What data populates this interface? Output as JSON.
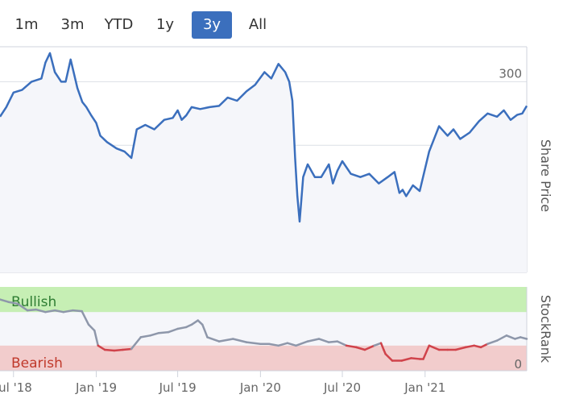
{
  "range_selector": {
    "buttons": [
      {
        "label": "1m",
        "active": false
      },
      {
        "label": "3m",
        "active": false
      },
      {
        "label": "YTD",
        "active": false
      },
      {
        "label": "1y",
        "active": false
      },
      {
        "label": "3y",
        "active": true
      },
      {
        "label": "All",
        "active": false
      }
    ]
  },
  "colors": {
    "price_line": "#3b6fbd",
    "plot_bg": "#f5f6fa",
    "bullish_band": "#c6efb4",
    "bearish_band": "#f2cccc",
    "rank_neutral": "#8e97aa",
    "rank_bearish": "#d0434b",
    "bullish_text": "#2e7d32",
    "bearish_text": "#c0392b",
    "active_button": "#3b6fbd"
  },
  "chart_data": [
    {
      "type": "line",
      "title": "",
      "ylabel": "Share Price",
      "ylim": [
        0,
        355
      ],
      "yticks": [
        0,
        100,
        200,
        300
      ],
      "x_ticks": [
        "Jul '18",
        "Jan '19",
        "Jul '19",
        "Jan '20",
        "Jul '20",
        "Jan '21"
      ],
      "x_start": "2018-06-01",
      "x_end": "2021-08-15",
      "grid": true,
      "series": [
        {
          "x": [
            "2018-06-01",
            "2018-06-15",
            "2018-07-01",
            "2018-07-20",
            "2018-08-10",
            "2018-09-01",
            "2018-09-10",
            "2018-09-20",
            "2018-10-01",
            "2018-10-15",
            "2018-10-25",
            "2018-11-05",
            "2018-11-20",
            "2018-12-01",
            "2018-12-10",
            "2018-12-20",
            "2019-01-01",
            "2019-01-10",
            "2019-01-25",
            "2019-02-15",
            "2019-03-05",
            "2019-03-20",
            "2019-04-01",
            "2019-04-20",
            "2019-05-10",
            "2019-06-01",
            "2019-06-20",
            "2019-07-01",
            "2019-07-10",
            "2019-07-20",
            "2019-08-01",
            "2019-08-20",
            "2019-09-10",
            "2019-10-01",
            "2019-10-20",
            "2019-11-10",
            "2019-12-01",
            "2019-12-20",
            "2020-01-10",
            "2020-01-25",
            "2020-02-10",
            "2020-02-25",
            "2020-03-05",
            "2020-03-12",
            "2020-03-18",
            "2020-03-23",
            "2020-03-28",
            "2020-04-05",
            "2020-04-15",
            "2020-05-01",
            "2020-05-15",
            "2020-06-01",
            "2020-06-10",
            "2020-06-20",
            "2020-07-01",
            "2020-07-20",
            "2020-08-10",
            "2020-08-30",
            "2020-09-20",
            "2020-10-10",
            "2020-10-25",
            "2020-11-05",
            "2020-11-12",
            "2020-11-20",
            "2020-12-05",
            "2020-12-20",
            "2021-01-10",
            "2021-02-01",
            "2021-02-20",
            "2021-03-05",
            "2021-03-20",
            "2021-04-10",
            "2021-05-01",
            "2021-05-20",
            "2021-06-10",
            "2021-06-25",
            "2021-07-10",
            "2021-07-25",
            "2021-08-05",
            "2021-08-15"
          ],
          "y": [
            245,
            260,
            283,
            287,
            300,
            305,
            330,
            345,
            315,
            300,
            300,
            335,
            290,
            268,
            260,
            248,
            235,
            215,
            205,
            195,
            190,
            180,
            225,
            232,
            225,
            240,
            243,
            255,
            240,
            247,
            260,
            257,
            260,
            262,
            275,
            270,
            285,
            295,
            315,
            305,
            328,
            315,
            300,
            270,
            180,
            120,
            80,
            150,
            170,
            150,
            150,
            170,
            140,
            160,
            175,
            155,
            150,
            155,
            140,
            150,
            158,
            125,
            130,
            120,
            137,
            128,
            190,
            230,
            215,
            225,
            210,
            220,
            238,
            250,
            245,
            255,
            240,
            248,
            250,
            262
          ]
        }
      ]
    },
    {
      "type": "area",
      "title": "",
      "ylabel": "StockRank",
      "ylim": [
        0,
        100
      ],
      "yticks": [
        0
      ],
      "bands": [
        {
          "label": "Bullish",
          "from": 70,
          "to": 100
        },
        {
          "label": "Bearish",
          "from": 0,
          "to": 30
        }
      ],
      "series": [
        {
          "x": [
            "2018-06-01",
            "2018-06-20",
            "2018-07-10",
            "2018-08-01",
            "2018-08-20",
            "2018-09-10",
            "2018-10-01",
            "2018-10-20",
            "2018-11-10",
            "2018-11-30",
            "2018-12-15",
            "2018-12-28",
            "2019-01-05",
            "2019-01-20",
            "2019-02-10",
            "2019-03-01",
            "2019-03-20",
            "2019-04-10",
            "2019-05-01",
            "2019-05-20",
            "2019-06-10",
            "2019-07-01",
            "2019-07-20",
            "2019-08-01",
            "2019-08-15",
            "2019-08-25",
            "2019-09-05",
            "2019-10-01",
            "2019-11-01",
            "2019-12-01",
            "2020-01-01",
            "2020-01-20",
            "2020-02-10",
            "2020-03-01",
            "2020-03-20",
            "2020-04-15",
            "2020-05-10",
            "2020-06-01",
            "2020-06-20",
            "2020-07-10",
            "2020-08-01",
            "2020-08-20",
            "2020-09-10",
            "2020-09-25",
            "2020-10-01",
            "2020-10-05",
            "2020-10-20",
            "2020-11-10",
            "2020-12-01",
            "2020-12-20",
            "2020-12-28",
            "2021-01-10",
            "2021-02-01",
            "2021-02-20",
            "2021-03-10",
            "2021-04-01",
            "2021-04-20",
            "2021-05-05",
            "2021-05-20",
            "2021-06-10",
            "2021-07-01",
            "2021-07-20",
            "2021-08-01",
            "2021-08-15"
          ],
          "y": [
            85,
            82,
            80,
            72,
            73,
            70,
            72,
            70,
            72,
            71,
            55,
            48,
            30,
            25,
            24,
            25,
            26,
            40,
            42,
            45,
            46,
            50,
            52,
            55,
            60,
            55,
            40,
            35,
            38,
            34,
            32,
            32,
            30,
            33,
            30,
            35,
            38,
            34,
            35,
            30,
            28,
            25,
            30,
            33,
            25,
            20,
            12,
            12,
            15,
            14,
            14,
            30,
            25,
            25,
            25,
            28,
            30,
            28,
            32,
            36,
            42,
            38,
            40,
            38
          ]
        }
      ]
    }
  ]
}
